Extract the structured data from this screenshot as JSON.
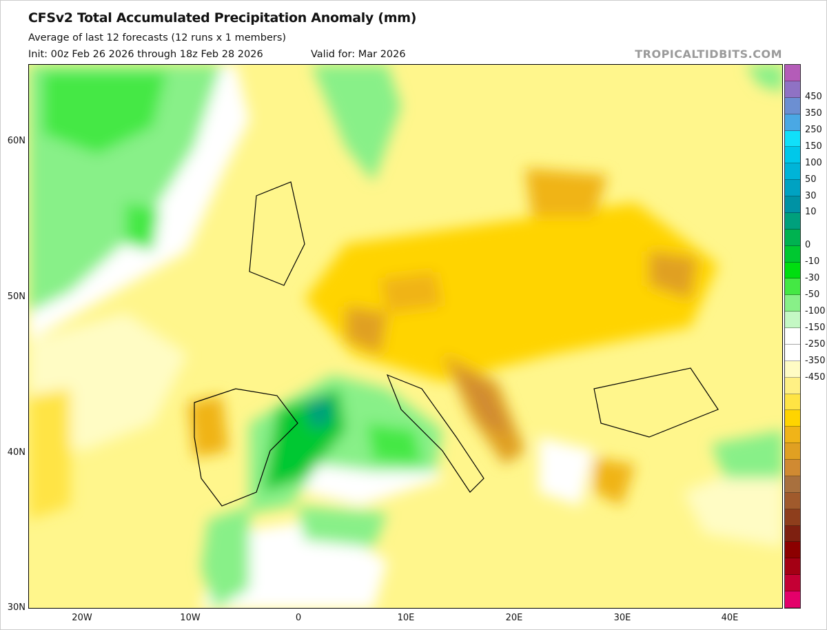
{
  "header": {
    "title": "CFSv2 Total Accumulated Precipitation Anomaly (mm)",
    "subtitle": "Average of last 12 forecasts (12 runs x 1 members)",
    "init": "Init: 00z Feb 26 2026 through 18z Feb 28 2026",
    "valid": "Valid for: Mar 2026",
    "watermark": "TROPICALTIDBITS.COM"
  },
  "axes": {
    "lat_labels": [
      "60N",
      "50N",
      "40N",
      "30N"
    ],
    "lon_labels": [
      "20W",
      "10W",
      "0",
      "10E",
      "20E",
      "30E",
      "40E"
    ]
  },
  "colorbar": {
    "labels": [
      "450",
      "350",
      "250",
      "150",
      "100",
      "50",
      "30",
      "10",
      "0",
      "-10",
      "-30",
      "-50",
      "-100",
      "-150",
      "-250",
      "-350",
      "-450"
    ],
    "colors": [
      "#b45cb8",
      "#8f72c4",
      "#6c8fd2",
      "#4aa8e4",
      "#10e0fa",
      "#00c8ea",
      "#00b4d8",
      "#00a2c2",
      "#0092a4",
      "#00a07c",
      "#00b250",
      "#00c830",
      "#00de10",
      "#44e844",
      "#88f088",
      "#c4f8c4",
      "#ffffff",
      "#ffffff",
      "#fffcc4",
      "#fff084",
      "#ffe444",
      "#ffd400",
      "#f0b418",
      "#e0a022",
      "#d08a32",
      "#a8703e",
      "#a05a2c",
      "#8e3e1c",
      "#7e2010",
      "#8c0000",
      "#a40014",
      "#c40034",
      "#e4006a"
    ]
  }
}
